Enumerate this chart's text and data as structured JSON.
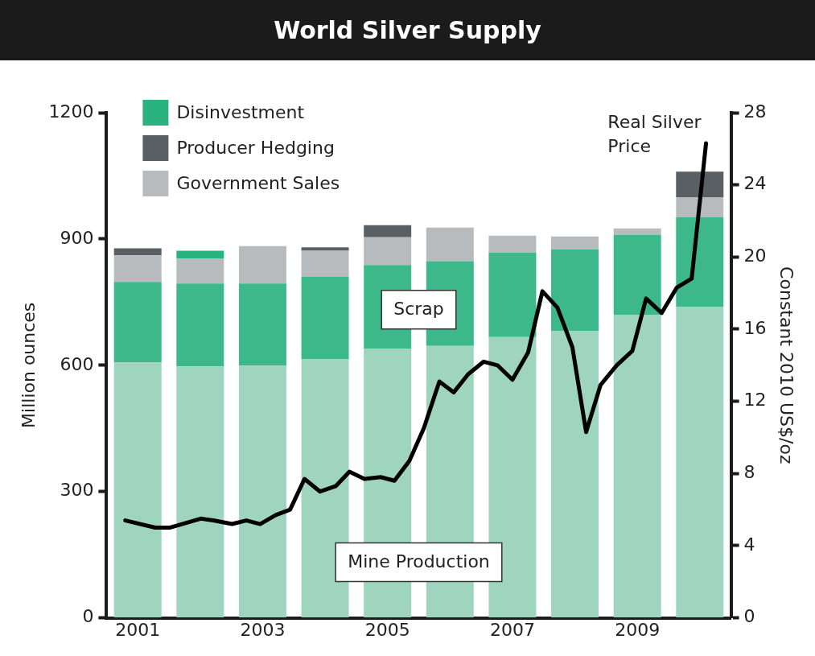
{
  "chart_data": {
    "type": "bar",
    "title": "World Silver Supply",
    "stacked": true,
    "x": [
      2001,
      2002,
      2003,
      2004,
      2005,
      2006,
      2007,
      2008,
      2009,
      2010
    ],
    "xlim": [
      2000.5,
      2010.5
    ],
    "xticks": [
      2001,
      2003,
      2005,
      2007,
      2009
    ],
    "ylim": [
      0,
      1200
    ],
    "yticks": [
      0,
      300,
      600,
      900,
      1200
    ],
    "ylabel": "Million ounces",
    "y2lim": [
      0,
      28
    ],
    "y2ticks": [
      0,
      4,
      8,
      12,
      16,
      20,
      24,
      28
    ],
    "y2label": "Constant 2010 US$/oz",
    "legend": "top left",
    "annotations": [
      "Scrap",
      "Mine Production"
    ],
    "series": [
      {
        "color": "#9fd4bf",
        "values": [
          607,
          597,
          599,
          614,
          639,
          646,
          667,
          681,
          720,
          739
        ]
      },
      {
        "color": "#3cb88a",
        "values": [
          191,
          197,
          195,
          197,
          199,
          201,
          201,
          195,
          190,
          213
        ]
      },
      {
        "name": "Government Sales",
        "color": "#b7bbbe",
        "values": [
          63,
          59,
          89,
          61,
          66,
          80,
          40,
          30,
          15,
          47
        ]
      },
      {
        "name": "Producer Hedging",
        "color": "#5a5f63",
        "values": [
          17,
          null,
          null,
          8,
          29,
          null,
          null,
          null,
          null,
          61
        ]
      },
      {
        "name": "Disinvestment",
        "color": "#2ab37e",
        "values": [
          null,
          19,
          null,
          null,
          null,
          null,
          null,
          null,
          null,
          null
        ]
      },
      {
        "name": "Real Silver Price",
        "type": "line",
        "axis": "y2",
        "color": "#000000",
        "x": [
          2000.8,
          2001.28,
          2001.51,
          2002.01,
          2002.21,
          2002.51,
          2002.74,
          2002.96,
          2003.21,
          2003.44,
          2003.67,
          2003.92,
          2004.17,
          2004.39,
          2004.63,
          2004.89,
          2005.11,
          2005.35,
          2005.58,
          2005.83,
          2006.06,
          2006.29,
          2006.54,
          2006.76,
          2007.0,
          2007.25,
          2007.48,
          2007.72,
          2007.96,
          2008.18,
          2008.41,
          2008.67,
          2008.92,
          2009.14,
          2009.39,
          2009.63,
          2009.87,
          2010.1
        ],
        "values": [
          5.4,
          5.0,
          5.0,
          5.5,
          5.4,
          5.2,
          5.4,
          5.2,
          5.7,
          6.0,
          7.7,
          7.0,
          7.3,
          8.1,
          7.7,
          7.8,
          7.6,
          8.7,
          10.5,
          13.1,
          12.5,
          13.5,
          14.2,
          14.0,
          13.2,
          14.7,
          18.1,
          17.2,
          15.0,
          10.3,
          12.9,
          14.0,
          14.8,
          17.7,
          16.9,
          18.3,
          18.8,
          26.3
        ]
      }
    ]
  }
}
